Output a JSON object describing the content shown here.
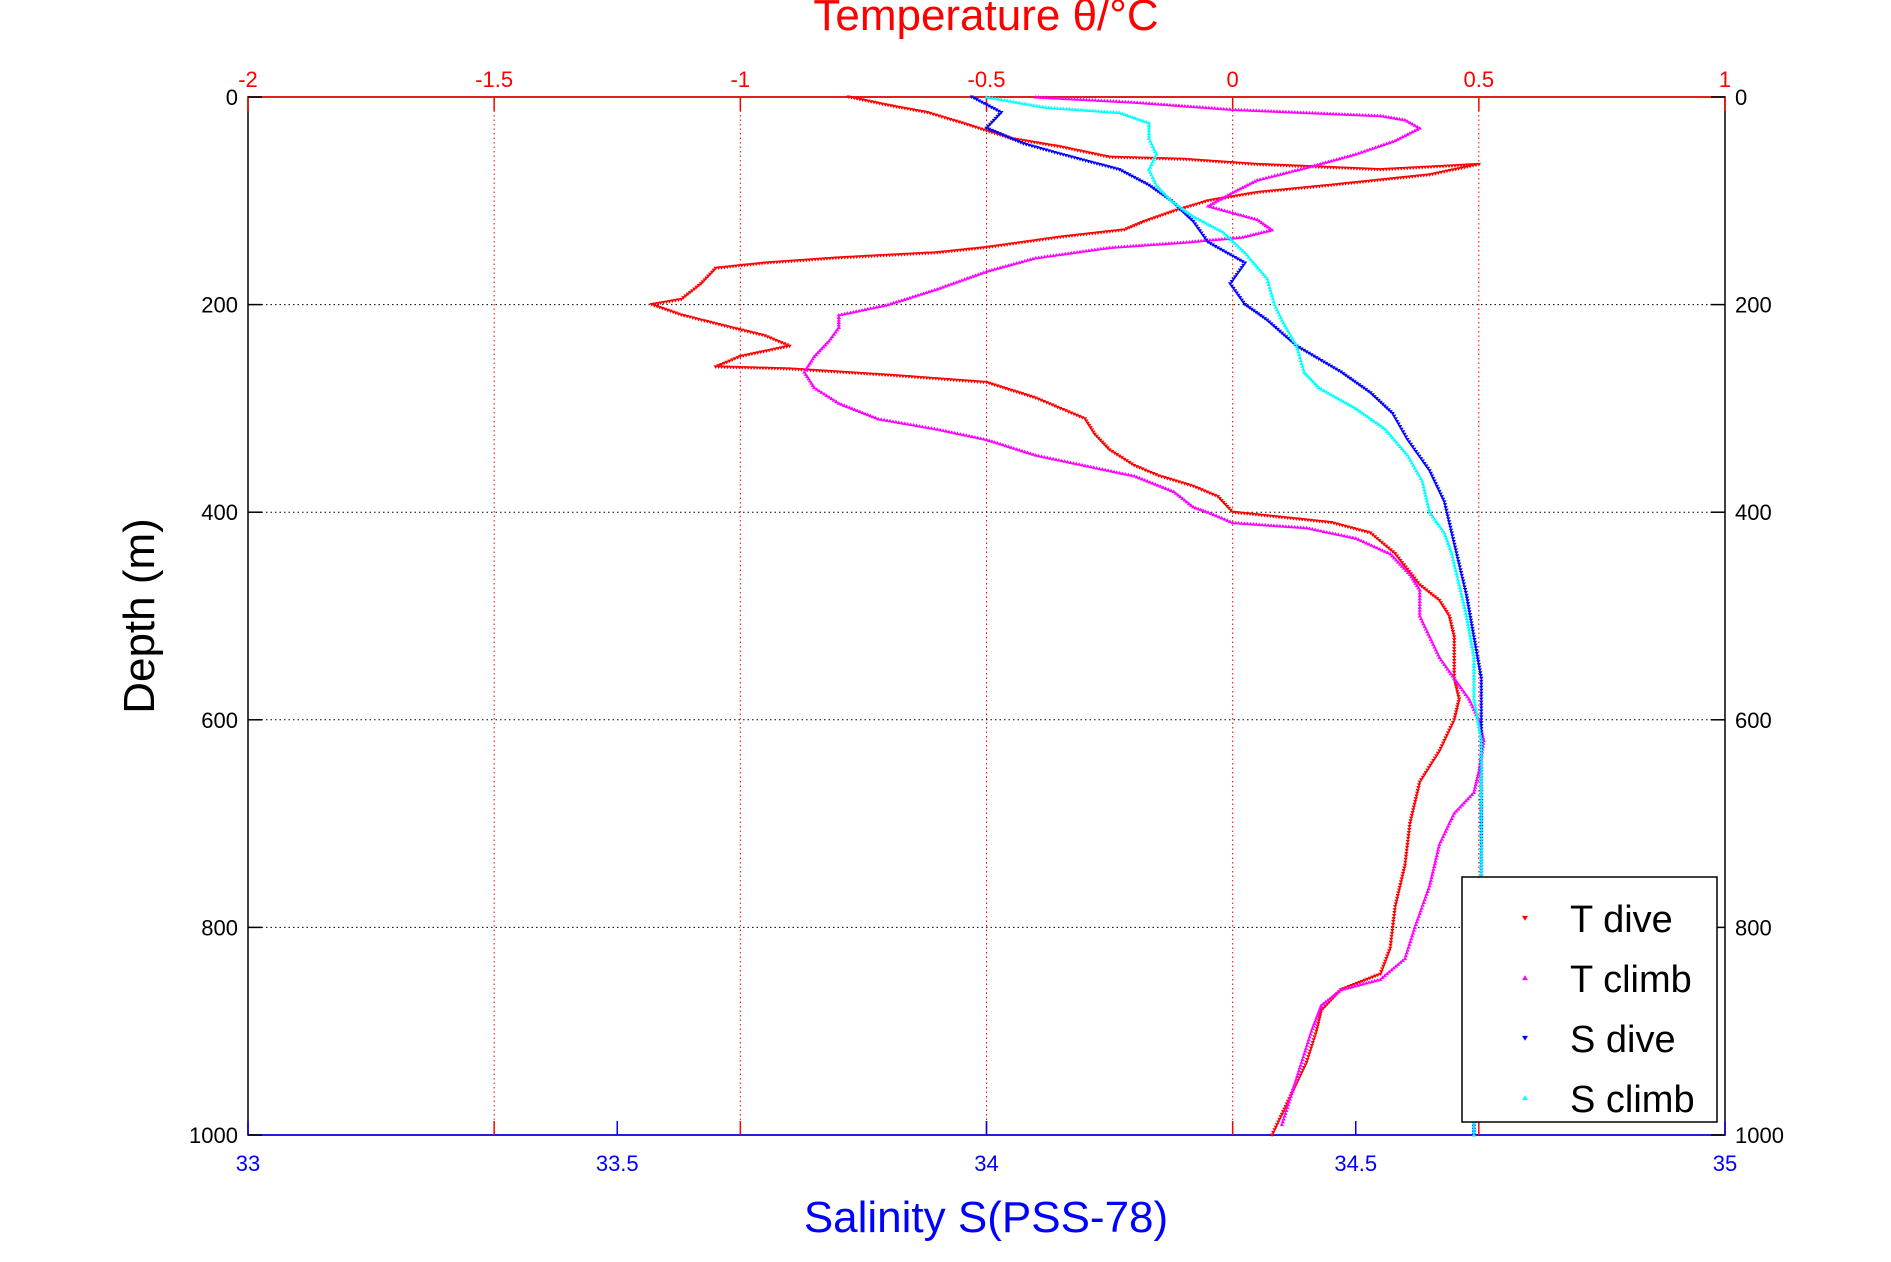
{
  "chart_data": {
    "type": "scatter",
    "title_top": "Temperature θ/°C",
    "xlabel_bottom": "Salinity S(PSS-78)",
    "ylabel": "Depth (m)",
    "temperature_axis": {
      "range": [
        -2,
        1
      ],
      "ticks": [
        "-2",
        "-1.5",
        "-1",
        "-0.5",
        "0",
        "0.5",
        "1"
      ],
      "color": "#ff0000",
      "grid": true
    },
    "salinity_axis": {
      "range": [
        33,
        35
      ],
      "ticks": [
        "33",
        "33.5",
        "34",
        "34.5",
        "35"
      ],
      "color": "#0000ff"
    },
    "depth_axis": {
      "range": [
        0,
        1000
      ],
      "reversed": true,
      "ticks": [
        "0",
        "200",
        "400",
        "600",
        "800",
        "1000"
      ],
      "grid": true
    },
    "legend_position": "bottom-right",
    "series": [
      {
        "name": "T dive",
        "axis": "temperature",
        "color": "#ff0000",
        "marker": "triangle-down",
        "points": [
          [
            -0.78,
            0
          ],
          [
            -0.7,
            8
          ],
          [
            -0.62,
            15
          ],
          [
            -0.55,
            25
          ],
          [
            -0.45,
            40
          ],
          [
            -0.35,
            48
          ],
          [
            -0.25,
            58
          ],
          [
            -0.1,
            60
          ],
          [
            0.05,
            65
          ],
          [
            0.3,
            70
          ],
          [
            0.5,
            65
          ],
          [
            0.4,
            75
          ],
          [
            0.2,
            85
          ],
          [
            0.05,
            92
          ],
          [
            -0.05,
            100
          ],
          [
            -0.12,
            110
          ],
          [
            -0.18,
            120
          ],
          [
            -0.22,
            128
          ],
          [
            -0.35,
            135
          ],
          [
            -0.5,
            145
          ],
          [
            -0.6,
            150
          ],
          [
            -0.8,
            155
          ],
          [
            -0.95,
            160
          ],
          [
            -1.05,
            165
          ],
          [
            -1.08,
            180
          ],
          [
            -1.12,
            195
          ],
          [
            -1.18,
            200
          ],
          [
            -1.12,
            210
          ],
          [
            -1.02,
            222
          ],
          [
            -0.95,
            230
          ],
          [
            -0.9,
            240
          ],
          [
            -1.0,
            250
          ],
          [
            -1.05,
            260
          ],
          [
            -0.9,
            262
          ],
          [
            -0.7,
            268
          ],
          [
            -0.5,
            275
          ],
          [
            -0.4,
            290
          ],
          [
            -0.35,
            300
          ],
          [
            -0.3,
            310
          ],
          [
            -0.28,
            325
          ],
          [
            -0.25,
            340
          ],
          [
            -0.2,
            355
          ],
          [
            -0.15,
            365
          ],
          [
            -0.08,
            375
          ],
          [
            -0.03,
            385
          ],
          [
            0.0,
            400
          ],
          [
            0.1,
            405
          ],
          [
            0.2,
            410
          ],
          [
            0.28,
            420
          ],
          [
            0.33,
            440
          ],
          [
            0.38,
            470
          ],
          [
            0.42,
            485
          ],
          [
            0.44,
            500
          ],
          [
            0.45,
            520
          ],
          [
            0.45,
            560
          ],
          [
            0.46,
            580
          ],
          [
            0.45,
            600
          ],
          [
            0.42,
            630
          ],
          [
            0.38,
            660
          ],
          [
            0.36,
            700
          ],
          [
            0.35,
            740
          ],
          [
            0.33,
            780
          ],
          [
            0.32,
            820
          ],
          [
            0.3,
            845
          ],
          [
            0.22,
            860
          ],
          [
            0.18,
            880
          ],
          [
            0.17,
            900
          ],
          [
            0.15,
            930
          ],
          [
            0.12,
            960
          ],
          [
            0.1,
            980
          ],
          [
            0.08,
            1000
          ]
        ]
      },
      {
        "name": "T climb",
        "axis": "temperature",
        "color": "#ff00ff",
        "marker": "triangle-up",
        "points": [
          [
            -0.4,
            0
          ],
          [
            -0.2,
            5
          ],
          [
            0.0,
            12
          ],
          [
            0.15,
            15
          ],
          [
            0.3,
            18
          ],
          [
            0.35,
            22
          ],
          [
            0.38,
            30
          ],
          [
            0.33,
            42
          ],
          [
            0.25,
            55
          ],
          [
            0.15,
            68
          ],
          [
            0.05,
            80
          ],
          [
            0.0,
            92
          ],
          [
            -0.05,
            105
          ],
          [
            0.05,
            118
          ],
          [
            0.08,
            128
          ],
          [
            0.02,
            135
          ],
          [
            -0.1,
            140
          ],
          [
            -0.25,
            145
          ],
          [
            -0.4,
            155
          ],
          [
            -0.5,
            168
          ],
          [
            -0.6,
            185
          ],
          [
            -0.7,
            200
          ],
          [
            -0.8,
            210
          ],
          [
            -0.8,
            222
          ],
          [
            -0.82,
            235
          ],
          [
            -0.85,
            250
          ],
          [
            -0.87,
            265
          ],
          [
            -0.85,
            280
          ],
          [
            -0.8,
            295
          ],
          [
            -0.72,
            310
          ],
          [
            -0.6,
            320
          ],
          [
            -0.5,
            330
          ],
          [
            -0.4,
            345
          ],
          [
            -0.3,
            355
          ],
          [
            -0.2,
            365
          ],
          [
            -0.12,
            380
          ],
          [
            -0.08,
            395
          ],
          [
            -0.05,
            400
          ],
          [
            0.0,
            410
          ],
          [
            0.15,
            415
          ],
          [
            0.25,
            425
          ],
          [
            0.32,
            440
          ],
          [
            0.36,
            460
          ],
          [
            0.38,
            475
          ],
          [
            0.38,
            500
          ],
          [
            0.4,
            520
          ],
          [
            0.42,
            540
          ],
          [
            0.45,
            560
          ],
          [
            0.48,
            580
          ],
          [
            0.5,
            600
          ],
          [
            0.51,
            620
          ],
          [
            0.5,
            650
          ],
          [
            0.49,
            670
          ],
          [
            0.45,
            690
          ],
          [
            0.42,
            720
          ],
          [
            0.4,
            760
          ],
          [
            0.37,
            800
          ],
          [
            0.35,
            830
          ],
          [
            0.3,
            850
          ],
          [
            0.22,
            860
          ],
          [
            0.18,
            875
          ],
          [
            0.16,
            900
          ],
          [
            0.14,
            930
          ],
          [
            0.12,
            960
          ],
          [
            0.1,
            990
          ]
        ]
      },
      {
        "name": "S dive",
        "axis": "salinity",
        "color": "#0000ff",
        "marker": "triangle-down",
        "points": [
          [
            33.98,
            0
          ],
          [
            34.02,
            15
          ],
          [
            34.0,
            30
          ],
          [
            34.05,
            45
          ],
          [
            34.1,
            55
          ],
          [
            34.18,
            70
          ],
          [
            34.22,
            85
          ],
          [
            34.25,
            100
          ],
          [
            34.28,
            120
          ],
          [
            34.3,
            140
          ],
          [
            34.35,
            160
          ],
          [
            34.33,
            180
          ],
          [
            34.35,
            200
          ],
          [
            34.38,
            215
          ],
          [
            34.42,
            240
          ],
          [
            34.48,
            265
          ],
          [
            34.52,
            285
          ],
          [
            34.55,
            305
          ],
          [
            34.57,
            330
          ],
          [
            34.6,
            360
          ],
          [
            34.62,
            390
          ],
          [
            34.63,
            420
          ],
          [
            34.64,
            450
          ],
          [
            34.65,
            480
          ],
          [
            34.66,
            520
          ],
          [
            34.67,
            560
          ],
          [
            34.67,
            600
          ],
          [
            34.67,
            650
          ],
          [
            34.67,
            700
          ],
          [
            34.67,
            750
          ],
          [
            34.67,
            800
          ],
          [
            34.67,
            850
          ],
          [
            34.66,
            900
          ],
          [
            34.66,
            950
          ],
          [
            34.66,
            1000
          ]
        ]
      },
      {
        "name": "S climb",
        "axis": "salinity",
        "color": "#00ffff",
        "marker": "triangle-up",
        "points": [
          [
            34.0,
            0
          ],
          [
            34.08,
            10
          ],
          [
            34.18,
            15
          ],
          [
            34.22,
            25
          ],
          [
            34.22,
            40
          ],
          [
            34.23,
            55
          ],
          [
            34.22,
            70
          ],
          [
            34.23,
            85
          ],
          [
            34.25,
            100
          ],
          [
            34.28,
            115
          ],
          [
            34.32,
            130
          ],
          [
            34.35,
            150
          ],
          [
            34.38,
            175
          ],
          [
            34.39,
            200
          ],
          [
            34.4,
            215
          ],
          [
            34.42,
            240
          ],
          [
            34.43,
            265
          ],
          [
            34.45,
            280
          ],
          [
            34.5,
            300
          ],
          [
            34.54,
            320
          ],
          [
            34.57,
            345
          ],
          [
            34.59,
            370
          ],
          [
            34.6,
            400
          ],
          [
            34.62,
            420
          ],
          [
            34.63,
            440
          ],
          [
            34.64,
            470
          ],
          [
            34.65,
            500
          ],
          [
            34.66,
            540
          ],
          [
            34.66,
            580
          ],
          [
            34.67,
            620
          ],
          [
            34.67,
            680
          ],
          [
            34.67,
            740
          ],
          [
            34.67,
            800
          ],
          [
            34.67,
            860
          ],
          [
            34.67,
            920
          ],
          [
            34.66,
            980
          ],
          [
            34.66,
            1000
          ]
        ]
      }
    ]
  }
}
